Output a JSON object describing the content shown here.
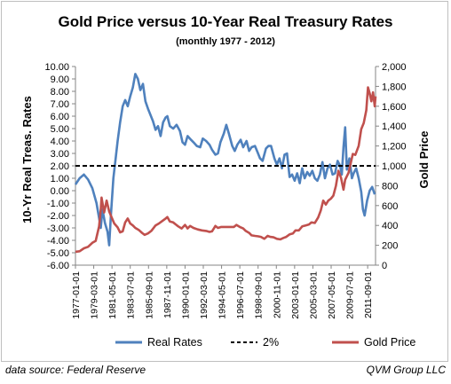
{
  "chart_data": {
    "type": "line",
    "title": "Gold Price versus 10-Year Real Treasury Rates",
    "subtitle": "(monthly 1977 - 2012)",
    "ylabel_left": "10-Yr Real Treas. Rates",
    "ylabel_right": "Gold Price",
    "ylim_left": [
      -6,
      10
    ],
    "ylim_right": [
      0,
      2000
    ],
    "yticks_left": [
      "10.00",
      "9.00",
      "8.00",
      "7.00",
      "6.00",
      "5.00",
      "4.00",
      "3.00",
      "2.00",
      "1.00",
      "0.00",
      "-1.00",
      "-2.00",
      "-3.00",
      "-4.00",
      "-5.00",
      "-6.00"
    ],
    "yticks_right": [
      "2,000",
      "1,800",
      "1,600",
      "1,400",
      "1,200",
      "1,000",
      "800",
      "600",
      "400",
      "200",
      "0"
    ],
    "xticks": [
      "1977-01-01",
      "1979-03-01",
      "1981-05-01",
      "1983-07-01",
      "1985-09-01",
      "1987-11-01",
      "1990-01-01",
      "1992-03-01",
      "1994-05-01",
      "1996-07-01",
      "1998-09-01",
      "2000-11-01",
      "2003-01-01",
      "2005-03-01",
      "2007-05-01",
      "2009-07-01",
      "2011-09-01"
    ],
    "x_range": [
      1977.0,
      2012.6
    ],
    "legend_position": "bottom",
    "grid": false,
    "series": [
      {
        "name": "Real Rates",
        "axis": "left",
        "color": "#4f81bd",
        "points": [
          [
            1977.0,
            0.5
          ],
          [
            1977.5,
            1.0
          ],
          [
            1978.0,
            1.3
          ],
          [
            1978.5,
            0.9
          ],
          [
            1979.0,
            0.2
          ],
          [
            1979.5,
            -1.0
          ],
          [
            1979.8,
            -2.2
          ],
          [
            1980.0,
            -3.0
          ],
          [
            1980.2,
            -1.5
          ],
          [
            1980.5,
            -2.6
          ],
          [
            1980.8,
            -3.3
          ],
          [
            1981.0,
            -4.4
          ],
          [
            1981.2,
            -2.0
          ],
          [
            1981.5,
            1.0
          ],
          [
            1981.8,
            2.8
          ],
          [
            1982.0,
            4.0
          ],
          [
            1982.3,
            5.5
          ],
          [
            1982.6,
            6.8
          ],
          [
            1982.9,
            7.3
          ],
          [
            1983.2,
            6.8
          ],
          [
            1983.5,
            7.6
          ],
          [
            1983.8,
            8.3
          ],
          [
            1984.1,
            9.4
          ],
          [
            1984.4,
            9.0
          ],
          [
            1984.7,
            8.1
          ],
          [
            1985.0,
            8.6
          ],
          [
            1985.3,
            7.2
          ],
          [
            1985.6,
            6.6
          ],
          [
            1985.9,
            6.1
          ],
          [
            1986.2,
            5.6
          ],
          [
            1986.5,
            4.9
          ],
          [
            1986.8,
            5.2
          ],
          [
            1987.1,
            4.4
          ],
          [
            1987.4,
            5.5
          ],
          [
            1987.7,
            5.9
          ],
          [
            1987.9,
            6.0
          ],
          [
            1988.2,
            5.2
          ],
          [
            1988.6,
            5.0
          ],
          [
            1989.0,
            5.3
          ],
          [
            1989.4,
            4.8
          ],
          [
            1989.7,
            3.9
          ],
          [
            1990.0,
            3.7
          ],
          [
            1990.3,
            4.4
          ],
          [
            1990.7,
            4.1
          ],
          [
            1991.0,
            3.9
          ],
          [
            1991.4,
            3.6
          ],
          [
            1991.8,
            3.5
          ],
          [
            1992.1,
            4.2
          ],
          [
            1992.5,
            4.0
          ],
          [
            1992.9,
            3.7
          ],
          [
            1993.2,
            3.3
          ],
          [
            1993.6,
            2.9
          ],
          [
            1993.9,
            3.0
          ],
          [
            1994.2,
            3.9
          ],
          [
            1994.6,
            4.6
          ],
          [
            1994.9,
            5.3
          ],
          [
            1995.2,
            4.6
          ],
          [
            1995.6,
            3.6
          ],
          [
            1995.9,
            3.2
          ],
          [
            1996.2,
            3.7
          ],
          [
            1996.6,
            4.1
          ],
          [
            1996.9,
            3.5
          ],
          [
            1997.3,
            4.0
          ],
          [
            1997.6,
            3.2
          ],
          [
            1997.9,
            3.5
          ],
          [
            1998.3,
            3.6
          ],
          [
            1998.6,
            3.1
          ],
          [
            1998.9,
            2.6
          ],
          [
            1999.2,
            2.4
          ],
          [
            1999.6,
            3.4
          ],
          [
            1999.9,
            3.6
          ],
          [
            2000.2,
            3.6
          ],
          [
            2000.6,
            2.6
          ],
          [
            2000.9,
            2.1
          ],
          [
            2001.2,
            2.6
          ],
          [
            2001.5,
            1.8
          ],
          [
            2001.8,
            2.9
          ],
          [
            2002.1,
            3.0
          ],
          [
            2002.4,
            1.1
          ],
          [
            2002.7,
            1.3
          ],
          [
            2003.0,
            0.8
          ],
          [
            2003.3,
            1.4
          ],
          [
            2003.6,
            0.6
          ],
          [
            2003.9,
            1.8
          ],
          [
            2004.2,
            1.0
          ],
          [
            2004.5,
            1.5
          ],
          [
            2004.8,
            1.2
          ],
          [
            2005.1,
            1.6
          ],
          [
            2005.4,
            1.0
          ],
          [
            2005.7,
            0.8
          ],
          [
            2006.0,
            1.3
          ],
          [
            2006.3,
            2.3
          ],
          [
            2006.6,
            1.0
          ],
          [
            2006.9,
            1.8
          ],
          [
            2007.2,
            2.1
          ],
          [
            2007.5,
            1.3
          ],
          [
            2007.8,
            1.4
          ],
          [
            2008.1,
            2.4
          ],
          [
            2008.4,
            2.0
          ],
          [
            2008.6,
            1.3
          ],
          [
            2008.8,
            3.5
          ],
          [
            2009.0,
            5.1
          ],
          [
            2009.2,
            1.7
          ],
          [
            2009.5,
            2.6
          ],
          [
            2009.8,
            1.0
          ],
          [
            2010.0,
            1.4
          ],
          [
            2010.3,
            1.8
          ],
          [
            2010.6,
            1.0
          ],
          [
            2010.9,
            -0.1
          ],
          [
            2011.1,
            -1.5
          ],
          [
            2011.3,
            -2.0
          ],
          [
            2011.6,
            -0.8
          ],
          [
            2011.9,
            0.0
          ],
          [
            2012.2,
            0.3
          ],
          [
            2012.5,
            -0.3
          ]
        ]
      },
      {
        "name": "2%",
        "axis": "left",
        "color": "#000000",
        "dashed": true,
        "points": [
          [
            1977.0,
            2.0
          ],
          [
            2012.6,
            2.0
          ]
        ]
      },
      {
        "name": "Gold Price",
        "axis": "right",
        "color": "#c0504d",
        "points": [
          [
            1977.0,
            135
          ],
          [
            1977.5,
            140
          ],
          [
            1978.0,
            170
          ],
          [
            1978.5,
            185
          ],
          [
            1979.0,
            225
          ],
          [
            1979.4,
            245
          ],
          [
            1979.8,
            390
          ],
          [
            1980.0,
            560
          ],
          [
            1980.1,
            680
          ],
          [
            1980.4,
            530
          ],
          [
            1980.7,
            650
          ],
          [
            1981.0,
            540
          ],
          [
            1981.3,
            480
          ],
          [
            1981.6,
            420
          ],
          [
            1982.0,
            380
          ],
          [
            1982.3,
            330
          ],
          [
            1982.6,
            340
          ],
          [
            1982.9,
            430
          ],
          [
            1983.2,
            470
          ],
          [
            1983.5,
            420
          ],
          [
            1983.8,
            400
          ],
          [
            1984.1,
            375
          ],
          [
            1984.5,
            355
          ],
          [
            1984.9,
            325
          ],
          [
            1985.2,
            305
          ],
          [
            1985.6,
            320
          ],
          [
            1986.0,
            345
          ],
          [
            1986.5,
            400
          ],
          [
            1986.9,
            420
          ],
          [
            1987.3,
            445
          ],
          [
            1987.7,
            470
          ],
          [
            1987.9,
            485
          ],
          [
            1988.2,
            440
          ],
          [
            1988.6,
            430
          ],
          [
            1988.9,
            410
          ],
          [
            1989.2,
            390
          ],
          [
            1989.6,
            370
          ],
          [
            1990.0,
            405
          ],
          [
            1990.3,
            370
          ],
          [
            1990.6,
            395
          ],
          [
            1991.0,
            375
          ],
          [
            1991.5,
            360
          ],
          [
            1992.0,
            350
          ],
          [
            1992.5,
            345
          ],
          [
            1992.9,
            335
          ],
          [
            1993.2,
            340
          ],
          [
            1993.6,
            395
          ],
          [
            1993.9,
            375
          ],
          [
            1994.3,
            385
          ],
          [
            1994.8,
            385
          ],
          [
            1995.3,
            385
          ],
          [
            1995.8,
            385
          ],
          [
            1996.1,
            405
          ],
          [
            1996.5,
            385
          ],
          [
            1996.9,
            370
          ],
          [
            1997.2,
            345
          ],
          [
            1997.6,
            325
          ],
          [
            1997.9,
            300
          ],
          [
            1998.3,
            295
          ],
          [
            1998.7,
            290
          ],
          [
            1999.0,
            285
          ],
          [
            1999.4,
            265
          ],
          [
            1999.8,
            295
          ],
          [
            2000.1,
            285
          ],
          [
            2000.5,
            280
          ],
          [
            2000.9,
            265
          ],
          [
            2001.3,
            260
          ],
          [
            2001.7,
            275
          ],
          [
            2002.0,
            285
          ],
          [
            2002.4,
            310
          ],
          [
            2002.8,
            320
          ],
          [
            2003.1,
            350
          ],
          [
            2003.5,
            350
          ],
          [
            2003.9,
            390
          ],
          [
            2004.3,
            400
          ],
          [
            2004.7,
            410
          ],
          [
            2005.0,
            430
          ],
          [
            2005.4,
            425
          ],
          [
            2005.8,
            480
          ],
          [
            2006.1,
            550
          ],
          [
            2006.4,
            650
          ],
          [
            2006.7,
            610
          ],
          [
            2007.0,
            650
          ],
          [
            2007.3,
            670
          ],
          [
            2007.6,
            700
          ],
          [
            2007.9,
            800
          ],
          [
            2008.2,
            950
          ],
          [
            2008.5,
            880
          ],
          [
            2008.8,
            760
          ],
          [
            2009.0,
            860
          ],
          [
            2009.4,
            930
          ],
          [
            2009.9,
            1120
          ],
          [
            2010.2,
            1110
          ],
          [
            2010.6,
            1200
          ],
          [
            2010.9,
            1370
          ],
          [
            2011.2,
            1430
          ],
          [
            2011.5,
            1560
          ],
          [
            2011.7,
            1790
          ],
          [
            2011.9,
            1730
          ],
          [
            2012.1,
            1650
          ],
          [
            2012.3,
            1740
          ],
          [
            2012.5,
            1600
          ],
          [
            2012.6,
            1700
          ]
        ]
      }
    ]
  },
  "footer": {
    "source": "data source: Federal Reserve",
    "credit": "QVM Group LLC"
  }
}
